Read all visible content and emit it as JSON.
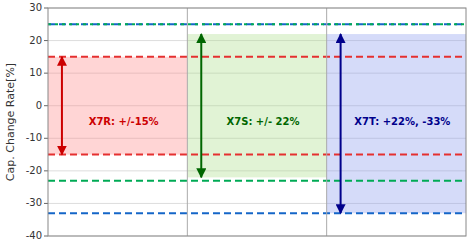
{
  "chart_data": {
    "type": "range_bar",
    "ylabel": "Cap. Change Rate[%]",
    "categories": [
      null,
      null,
      null
    ],
    "lows": [
      -15,
      -22,
      -33
    ],
    "highs": [
      15,
      22,
      22
    ],
    "colors": [
      "#ff8888",
      "#aadd88",
      "#8899ee"
    ],
    "annotations": [
      {
        "text": "X7R: +/-15%",
        "color": "#cc0000"
      },
      {
        "text": "X7S: +/- 22%",
        "color": "#006600"
      },
      {
        "text": "X7T: +22%, -33%",
        "color": "#00008b"
      }
    ],
    "reference_lines": [
      {
        "value": 25,
        "color": "#1466c8",
        "line_style": "dashed"
      },
      {
        "value": 25,
        "color": "#00aa55",
        "line_style": "dotted"
      },
      {
        "value": 15,
        "color": "#e53030",
        "line_style": "dashed"
      },
      {
        "value": -15,
        "color": "#e53030",
        "line_style": "dashed"
      },
      {
        "value": -23,
        "color": "#00aa55",
        "line_style": "dashed"
      },
      {
        "value": -33,
        "color": "#1466c8",
        "line_style": "dashed"
      }
    ],
    "ylim": [
      -40,
      30
    ],
    "yticks": [
      -40,
      -30,
      -20,
      -10,
      0,
      10,
      20,
      30
    ],
    "grid": true
  }
}
